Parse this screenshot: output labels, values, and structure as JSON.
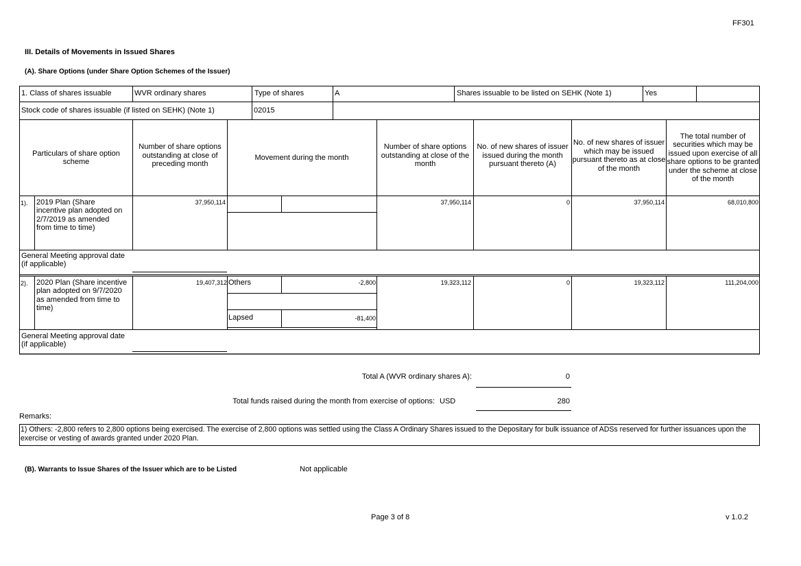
{
  "form_code": "FF301",
  "section_title": "III. Details of Movements in Issued Shares",
  "subsection_a_title": "(A). Share Options (under Share Option Schemes of the Issuer)",
  "info": {
    "class_label": "1. Class of shares issuable",
    "class_value": "WVR ordinary shares",
    "type_label": "Type of shares",
    "type_value": "A",
    "listed_label": "Shares issuable to be listed on SEHK (Note 1)",
    "listed_value": "Yes",
    "stock_code_label": "Stock code of shares issuable (if listed on SEHK) (Note 1)",
    "stock_code_value": "02015"
  },
  "headers": {
    "particulars": "Particulars of share option scheme",
    "preceding": "Number of share options outstanding at close of preceding month",
    "movement": "Movement during the month",
    "close": "Number of share options outstanding at close of the month",
    "issued": "No. of new shares of issuer issued during the month pursuant thereto (A)",
    "may_issue": "No. of new shares of issuer which may be issued pursuant thereto as at close of the month",
    "total": "The total number of securities which may be issued upon exercise of all share options to be granted under the scheme at close of the month"
  },
  "plans": [
    {
      "no": "1).",
      "name": "2019 Plan (Share incentive plan adopted on 2/7/2019 as amended from time to time)",
      "preceding": "37,950,114",
      "movements": [],
      "close": "37,950,114",
      "issued": "0",
      "may_issue": "37,950,114",
      "total": "68,010,800",
      "gm_label": "General Meeting approval date (if applicable)"
    },
    {
      "no": "2).",
      "name": "2020 Plan (Share incentive plan adopted on 9/7/2020 as amended from time to time)",
      "preceding": "19,407,312",
      "movements": [
        {
          "type": "Others",
          "value": "-2,800"
        },
        {
          "type": "Lapsed",
          "value": "-81,400"
        }
      ],
      "close": "19,323,112",
      "issued": "0",
      "may_issue": "19,323,112",
      "total": "111,204,000",
      "gm_label": "General Meeting approval date (if applicable)"
    }
  ],
  "totals": {
    "total_a_label": "Total A (WVR ordinary shares A):",
    "total_a_value": "0",
    "funds_label": "Total funds raised during the month from exercise of options:",
    "funds_currency": "USD",
    "funds_value": "280"
  },
  "remarks": {
    "label": "Remarks:",
    "text": "1) Others: -2,800 refers to 2,800 options being exercised. The exercise of 2,800 options was settled using the Class A Ordinary Shares issued to the Depositary for bulk issuance of ADSs reserved for further issuances upon the exercise or vesting of awards granted under 2020 Plan."
  },
  "subsection_b": {
    "title": "(B). Warrants to Issue Shares of the Issuer which are to be Listed",
    "value": "Not applicable"
  },
  "footer": {
    "page": "Page 3 of 8",
    "version": "v 1.0.2"
  }
}
